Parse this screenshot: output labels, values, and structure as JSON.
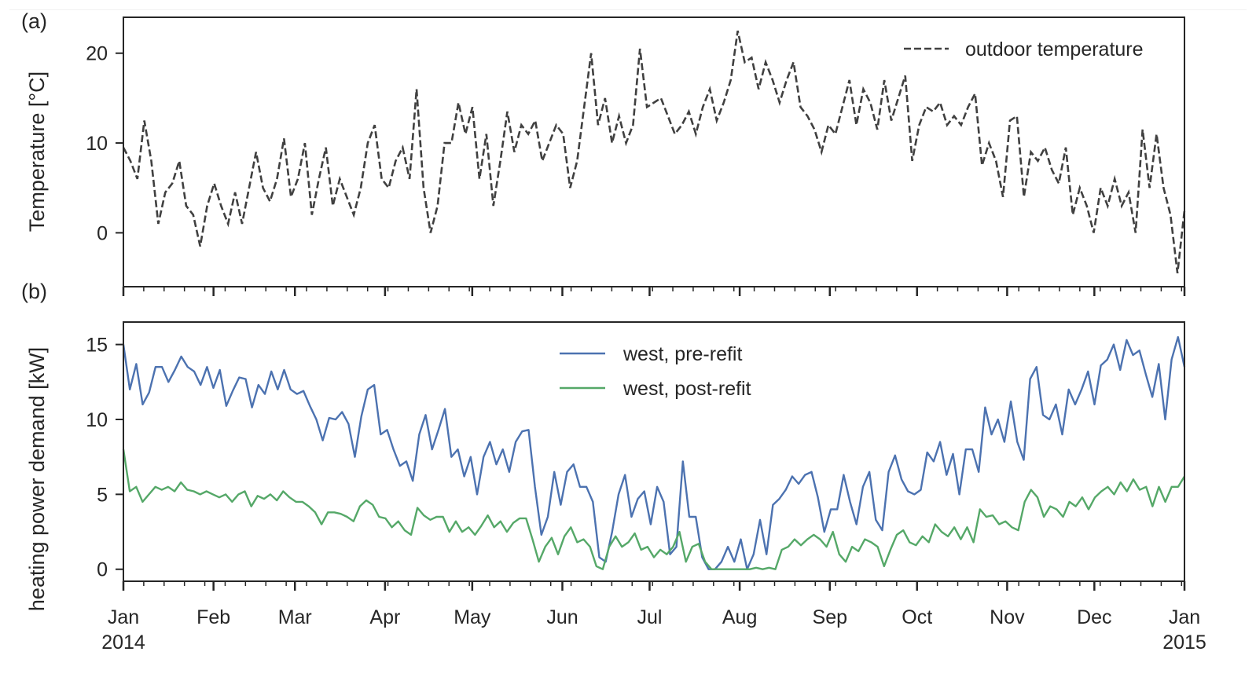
{
  "chart_data": [
    {
      "panel_label": "(a)",
      "type": "line",
      "title": "",
      "xlabel": "",
      "ylabel": "Temperature [°C]",
      "ylim": [
        -6,
        24
      ],
      "yticks": [
        0,
        10,
        20
      ],
      "ytick_labels": [
        "0",
        "10",
        "20"
      ],
      "xlim": [
        "2014-01-01",
        "2015-01-01"
      ],
      "grid": false,
      "legend": {
        "position": "top-right",
        "entries": [
          {
            "label": "outdoor temperature",
            "style": "dashed",
            "color": "#404040"
          }
        ]
      },
      "sample_interval_days": 3,
      "series": [
        {
          "name": "outdoor temperature",
          "color": "#404040",
          "style": "dashed",
          "x_start": "2014-01-01",
          "values": [
            9.5,
            8,
            6,
            12.5,
            8,
            1,
            4.5,
            5.5,
            8,
            3,
            2,
            -1.5,
            3,
            5.5,
            3,
            1,
            4.5,
            1,
            5,
            9,
            5,
            3.5,
            6,
            10.5,
            4,
            6,
            10,
            2,
            6,
            9.5,
            3,
            6,
            4,
            2,
            5,
            10,
            12,
            6,
            5,
            8,
            9.5,
            6,
            16,
            5,
            0,
            3,
            10,
            10,
            14.5,
            11,
            14,
            6,
            11,
            3,
            8,
            13.5,
            9,
            12,
            11,
            12.5,
            8,
            10,
            12,
            11,
            5,
            8,
            14,
            20,
            12,
            15,
            10,
            13,
            10,
            12,
            20.5,
            14,
            14.5,
            15,
            13,
            11,
            12,
            13.5,
            11,
            14,
            16,
            12.5,
            14.5,
            17,
            22.5,
            19,
            19.5,
            16,
            19,
            17,
            14.5,
            17,
            19,
            14,
            13,
            11.5,
            9,
            12,
            11,
            14,
            17,
            12,
            16,
            14.5,
            11.5,
            17,
            12.5,
            15,
            17.5,
            8,
            12,
            14,
            13.5,
            14.5,
            12,
            13,
            12,
            14,
            15.5,
            7.5,
            10,
            8,
            4,
            12.5,
            13,
            4,
            9,
            8,
            9.5,
            7,
            5.5,
            9.5,
            2,
            5,
            3,
            0,
            5,
            3,
            6,
            3,
            4.5,
            0,
            11.5,
            5,
            11,
            5,
            2,
            -4.5,
            2.5
          ]
        }
      ]
    },
    {
      "panel_label": "(b)",
      "type": "line",
      "title": "",
      "xlabel": "",
      "ylabel": "heating power demand [kW]",
      "ylim": [
        -0.8,
        16.5
      ],
      "yticks": [
        0,
        5,
        10,
        15
      ],
      "ytick_labels": [
        "0",
        "5",
        "10",
        "15"
      ],
      "xlim": [
        "2014-01-01",
        "2015-01-01"
      ],
      "xtick_labels": [
        "Jan\n2014",
        "Feb",
        "Mar",
        "Apr",
        "May",
        "Jun",
        "Jul",
        "Aug",
        "Sep",
        "Oct",
        "Nov",
        "Dec",
        "Jan\n2015"
      ],
      "grid": false,
      "legend": {
        "position": "top-center",
        "entries": [
          {
            "label": "west, pre-refit",
            "color": "#4c72b0"
          },
          {
            "label": "west, post-refit",
            "color": "#55a868"
          }
        ]
      },
      "sample_interval_days": 3,
      "series": [
        {
          "name": "west, pre-refit",
          "color": "#4c72b0",
          "x_start": "2014-01-01",
          "values": [
            15,
            12,
            13.7,
            11,
            11.8,
            13.5,
            13.5,
            12.5,
            13.3,
            14.2,
            13.5,
            13.2,
            12.3,
            13.5,
            12.1,
            13.3,
            10.9,
            11.9,
            12.8,
            12.7,
            10.8,
            12.3,
            11.7,
            13.2,
            12.0,
            13.3,
            12.0,
            11.7,
            11.9,
            10.9,
            10.0,
            8.6,
            10.1,
            10.0,
            10.5,
            9.7,
            7.5,
            10.2,
            12.0,
            12.3,
            9.0,
            9.3,
            8.0,
            6.9,
            7.2,
            5.9,
            9.0,
            10.3,
            8.0,
            9.3,
            10.7,
            7.5,
            8.0,
            6.2,
            7.5,
            5.0,
            7.5,
            8.5,
            7.0,
            8.0,
            6.5,
            8.5,
            9.2,
            9.3,
            5.5,
            2.3,
            3.5,
            6.5,
            4.3,
            6.5,
            7.0,
            5.5,
            5.5,
            4.5,
            0.8,
            0.5,
            2.5,
            5.0,
            6.3,
            3.5,
            4.7,
            5.2,
            3.0,
            5.5,
            4.5,
            1.0,
            1.5,
            7.2,
            3.5,
            3.5,
            0.8,
            0,
            0,
            0.5,
            1.5,
            0.5,
            2.0,
            0,
            1.0,
            3.3,
            1.0,
            4.3,
            4.7,
            5.3,
            6.2,
            5.7,
            6.3,
            6.5,
            4.8,
            2.5,
            4.0,
            4.0,
            6.3,
            4.5,
            3.0,
            5.5,
            6.5,
            3.3,
            2.6,
            6.5,
            7.6,
            6.0,
            5.2,
            5.0,
            5.3,
            7.8,
            7.2,
            8.5,
            6.3,
            7.7,
            5.0,
            8.0,
            8.0,
            6.5,
            10.8,
            9.0,
            10.0,
            8.5,
            11.2,
            8.5,
            7.3,
            12.7,
            13.5,
            10.3,
            10.0,
            11.0,
            9.0,
            12.0,
            11.0,
            12.0,
            13.2,
            11.0,
            13.6,
            14.0,
            15.0,
            13.3,
            15.3,
            14.3,
            14.6,
            13.0,
            11.5,
            13.7,
            10.0,
            14.0,
            15.5,
            13.5
          ]
        },
        {
          "name": "west, post-refit",
          "color": "#55a868",
          "x_start": "2014-01-01",
          "values": [
            8.0,
            5.2,
            5.5,
            4.5,
            5.0,
            5.5,
            5.3,
            5.5,
            5.2,
            5.8,
            5.3,
            5.2,
            5.0,
            5.2,
            5.0,
            4.8,
            5.0,
            4.5,
            5.0,
            5.2,
            4.2,
            4.9,
            4.7,
            5.0,
            4.6,
            5.2,
            4.8,
            4.5,
            4.5,
            4.2,
            3.8,
            3.0,
            3.8,
            3.8,
            3.7,
            3.5,
            3.2,
            4.2,
            4.6,
            4.3,
            3.5,
            3.4,
            2.8,
            3.2,
            2.6,
            2.3,
            4.1,
            3.6,
            3.3,
            3.5,
            3.5,
            2.5,
            3.2,
            2.5,
            2.8,
            2.3,
            2.9,
            3.6,
            2.8,
            3.2,
            2.5,
            3.1,
            3.4,
            3.4,
            2.0,
            0.5,
            1.5,
            2.1,
            1.0,
            2.2,
            2.8,
            1.8,
            2.0,
            1.5,
            0.2,
            0,
            1.5,
            2.2,
            1.5,
            1.8,
            2.4,
            1.3,
            1.5,
            0.8,
            1.3,
            1.0,
            1.5,
            2.5,
            0.5,
            1.5,
            1.7,
            0.5,
            0,
            0,
            0,
            0,
            0,
            0,
            0,
            0.1,
            0,
            0.1,
            0,
            1.3,
            1.5,
            2.0,
            1.6,
            2.0,
            2.3,
            2.0,
            1.5,
            2.5,
            1.0,
            0.5,
            1.5,
            1.2,
            2.0,
            1.8,
            1.5,
            0.2,
            1.3,
            2.3,
            2.6,
            1.8,
            1.6,
            2.2,
            1.8,
            3.0,
            2.5,
            2.2,
            2.8,
            2.0,
            2.8,
            1.8,
            4.0,
            3.5,
            3.6,
            3.0,
            3.2,
            2.8,
            2.6,
            4.5,
            5.3,
            4.8,
            3.5,
            4.2,
            4.0,
            3.5,
            4.5,
            4.2,
            4.8,
            4.0,
            4.8,
            5.2,
            5.5,
            5.0,
            5.8,
            5.2,
            6.0,
            5.3,
            5.5,
            4.2,
            5.5,
            4.5,
            5.5,
            5.5,
            6.2
          ]
        }
      ]
    }
  ]
}
